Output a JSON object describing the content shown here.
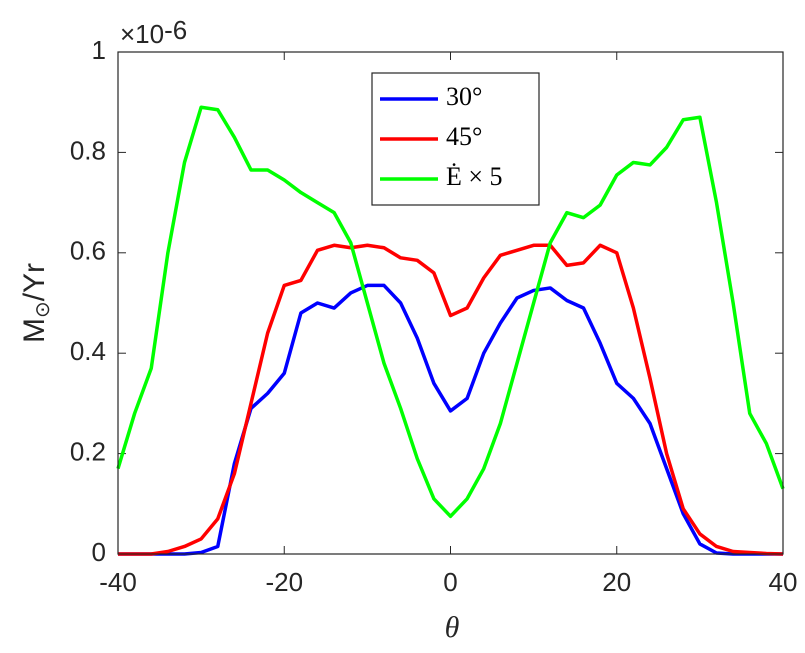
{
  "chart_data": {
    "type": "line",
    "xlabel": "θ",
    "ylabel": {
      "base": "M",
      "sub": "⊙",
      "tail": "/Yr"
    },
    "exponent_label": {
      "base": "×10",
      "sup": "-6"
    },
    "xlim": [
      -40,
      40
    ],
    "ylim": [
      0,
      1
    ],
    "xticks": [
      -40,
      -20,
      0,
      20,
      40
    ],
    "yticks": [
      0,
      0.2,
      0.4,
      0.6,
      0.8,
      1
    ],
    "grid": false,
    "legend": "top",
    "x": [
      -40,
      -38,
      -36,
      -34,
      -32,
      -30,
      -28,
      -26,
      -24,
      -22,
      -20,
      -18,
      -16,
      -14,
      -12,
      -10,
      -8,
      -6,
      -4,
      -2,
      0,
      2,
      4,
      6,
      8,
      10,
      12,
      14,
      16,
      18,
      20,
      22,
      24,
      26,
      28,
      30,
      32,
      34,
      36,
      38,
      40
    ],
    "series": [
      {
        "name": "30°",
        "color": "#0000ff",
        "values": [
          0,
          0,
          0,
          0,
          0,
          0.003,
          0.015,
          0.18,
          0.29,
          0.32,
          0.36,
          0.48,
          0.5,
          0.49,
          0.52,
          0.535,
          0.535,
          0.5,
          0.43,
          0.34,
          0.285,
          0.31,
          0.4,
          0.46,
          0.51,
          0.525,
          0.53,
          0.505,
          0.49,
          0.42,
          0.34,
          0.31,
          0.26,
          0.17,
          0.08,
          0.02,
          0.002,
          0,
          0,
          0,
          0
        ]
      },
      {
        "name": "45°",
        "color": "#ff0000",
        "values": [
          0,
          0,
          0,
          0.005,
          0.015,
          0.03,
          0.07,
          0.16,
          0.3,
          0.44,
          0.535,
          0.545,
          0.605,
          0.615,
          0.61,
          0.615,
          0.61,
          0.59,
          0.585,
          0.56,
          0.475,
          0.49,
          0.55,
          0.595,
          0.605,
          0.615,
          0.615,
          0.575,
          0.58,
          0.615,
          0.6,
          0.49,
          0.35,
          0.2,
          0.09,
          0.04,
          0.015,
          0.005,
          0.003,
          0.001,
          0
        ]
      },
      {
        "name": "Ė × 5",
        "color": "#00ff00",
        "values": [
          0.17,
          0.28,
          0.37,
          0.6,
          0.78,
          0.89,
          0.885,
          0.83,
          0.765,
          0.765,
          0.745,
          0.72,
          0.7,
          0.68,
          0.62,
          0.5,
          0.38,
          0.29,
          0.19,
          0.11,
          0.075,
          0.11,
          0.17,
          0.26,
          0.38,
          0.5,
          0.62,
          0.68,
          0.67,
          0.695,
          0.755,
          0.78,
          0.775,
          0.81,
          0.865,
          0.87,
          0.7,
          0.5,
          0.28,
          0.22,
          0.13
        ]
      }
    ]
  }
}
